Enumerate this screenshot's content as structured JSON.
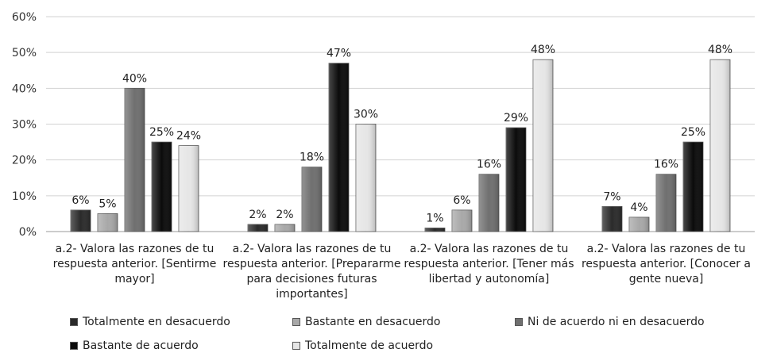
{
  "colors": {
    "s0": "#2a2a2a",
    "s1": "#a8a8a8",
    "s2": "#6f6f6f",
    "s3": "#0b0b0b",
    "s4": "#e6e6e6",
    "grid": "#d2d2d2"
  },
  "chart_data": {
    "type": "bar",
    "title": "",
    "xlabel": "",
    "ylabel": "",
    "ylim": [
      0,
      60
    ],
    "yticks": [
      "0%",
      "10%",
      "20%",
      "30%",
      "40%",
      "50%",
      "60%"
    ],
    "grid": true,
    "legend_position": "bottom",
    "categories": [
      [
        "a.2- Valora las razones de tu",
        "respuesta anterior. [Sentirme",
        "mayor]"
      ],
      [
        "a.2- Valora las razones de tu",
        "respuesta anterior. [Prepararme",
        "para decisiones futuras",
        "importantes]"
      ],
      [
        "a.2- Valora las razones de tu",
        "respuesta anterior. [Tener más",
        "libertad y autonomía]"
      ],
      [
        "a.2- Valora las razones de tu",
        "respuesta anterior. [Conocer a",
        "gente nueva]"
      ]
    ],
    "series": [
      {
        "name": "Totalmente en desacuerdo",
        "values": [
          6,
          2,
          1,
          7
        ],
        "labels": [
          "6%",
          "2%",
          "1%",
          "7%"
        ]
      },
      {
        "name": "Bastante en desacuerdo",
        "values": [
          5,
          2,
          6,
          4
        ],
        "labels": [
          "5%",
          "2%",
          "6%",
          "4%"
        ]
      },
      {
        "name": "Ni de acuerdo ni en desacuerdo",
        "values": [
          40,
          18,
          16,
          16
        ],
        "labels": [
          "40%",
          "18%",
          "16%",
          "16%"
        ]
      },
      {
        "name": "Bastante de acuerdo",
        "values": [
          25,
          47,
          29,
          25
        ],
        "labels": [
          "25%",
          "47%",
          "29%",
          "25%"
        ]
      },
      {
        "name": "Totalmente de acuerdo",
        "values": [
          24,
          30,
          48,
          48
        ],
        "labels": [
          "24%",
          "30%",
          "48%",
          "48%"
        ]
      }
    ]
  }
}
